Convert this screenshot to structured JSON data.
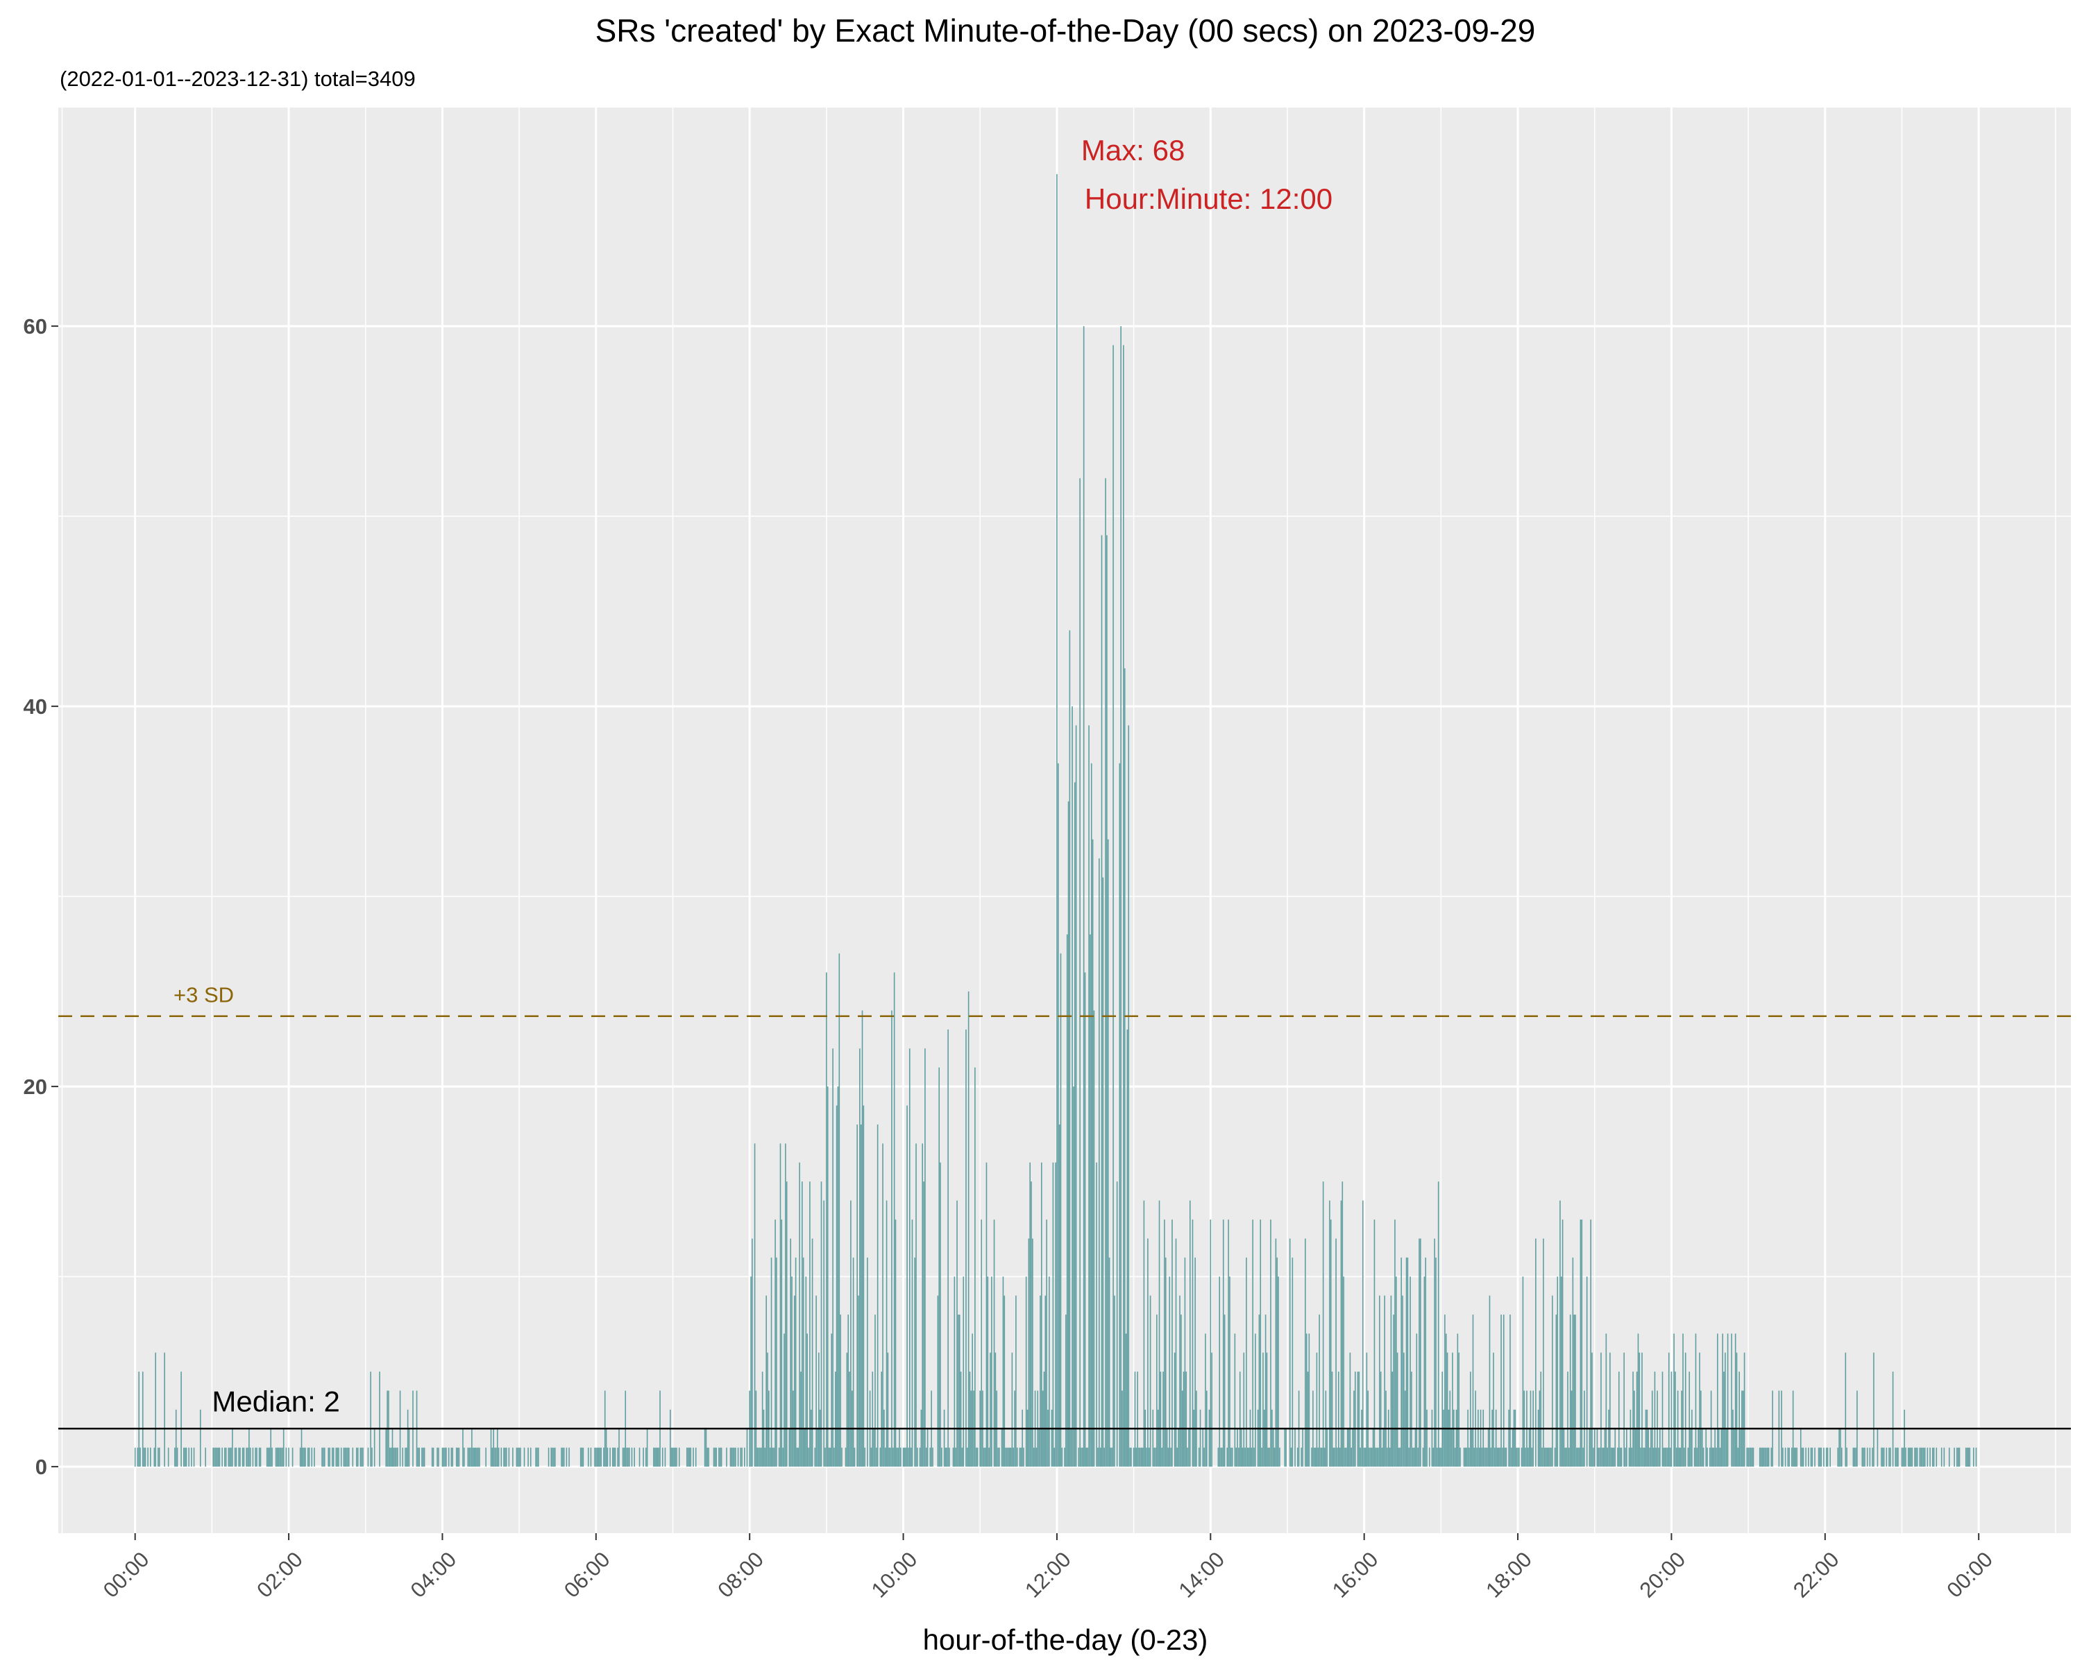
{
  "chart_data": {
    "type": "bar",
    "title": "SRs 'created' by Exact Minute-of-the-Day (00 secs) on 2023-09-29",
    "subtitle": "(2022-01-01--2023-12-31) total=3409",
    "xlabel": "hour-of-the-day (0-23)",
    "ylabel": "",
    "x_unit": "hour",
    "xlim": [
      -1.0,
      25.2
    ],
    "ylim": [
      -3.5,
      71.5
    ],
    "x_ticks": [
      "00:00",
      "02:00",
      "04:00",
      "06:00",
      "08:00",
      "10:00",
      "12:00",
      "14:00",
      "16:00",
      "18:00",
      "20:00",
      "22:00",
      "00:00"
    ],
    "x_tick_values": [
      0,
      2,
      4,
      6,
      8,
      10,
      12,
      14,
      16,
      18,
      20,
      22,
      24
    ],
    "y_ticks": [
      "0",
      "20",
      "40",
      "60"
    ],
    "y_tick_values": [
      0,
      20,
      40,
      60
    ],
    "grid": true,
    "legend": "none",
    "bar_color": "#5f9ea0",
    "series": [
      {
        "hour_bins": [
          0,
          1,
          2,
          3,
          4,
          5,
          6,
          7,
          8,
          9,
          10,
          11,
          12,
          13,
          14,
          15,
          16,
          17,
          18,
          19,
          20,
          21,
          22,
          23
        ],
        "peak_values_per_hour": [
          6,
          2,
          2,
          5,
          2,
          1,
          4,
          3,
          17,
          28,
          26,
          17,
          68,
          15,
          14,
          15,
          15,
          9,
          14,
          7,
          8,
          4,
          6,
          3
        ]
      }
    ],
    "hlines": [
      {
        "label": "Median: 2",
        "y": 2,
        "color": "#000000",
        "style": "solid"
      },
      {
        "label": "+3 SD",
        "y": 23.7,
        "color": "#8b6508",
        "style": "dashed"
      }
    ],
    "annotations": [
      {
        "text": "Max: 68",
        "x": 12.0,
        "y": 68,
        "color": "#cc2222"
      },
      {
        "text": "Hour:Minute: 12:00",
        "x": 12.0,
        "y": 68,
        "color": "#cc2222"
      }
    ]
  }
}
